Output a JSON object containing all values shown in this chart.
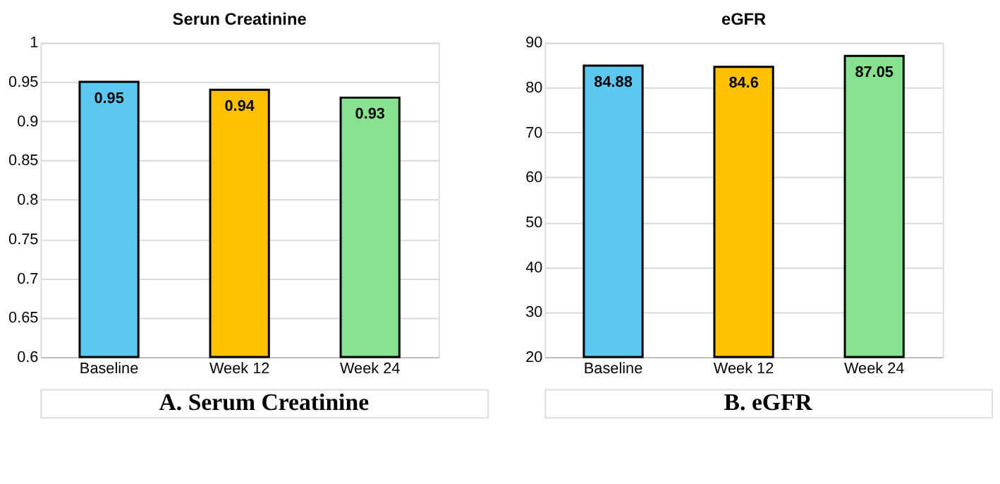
{
  "chart_data": [
    {
      "type": "bar",
      "title": "Serun Creatinine",
      "categories": [
        "Baseline",
        "Week 12",
        "Week 24"
      ],
      "values": [
        0.95,
        0.94,
        0.93
      ],
      "colors": [
        "#5bc8f2",
        "#ffc000",
        "#86e28f"
      ],
      "ylim": [
        0.6,
        1
      ],
      "yticks": [
        0.6,
        0.65,
        0.7,
        0.75,
        0.8,
        0.85,
        0.9,
        0.95,
        1
      ],
      "grid": "y",
      "data_labels": true,
      "annotations": [
        "A.   Serum Creatinine"
      ]
    },
    {
      "type": "bar",
      "title": "eGFR",
      "categories": [
        "Baseline",
        "Week 12",
        "Week 24"
      ],
      "values": [
        84.88,
        84.6,
        87.05
      ],
      "colors": [
        "#5bc8f2",
        "#ffc000",
        "#86e28f"
      ],
      "ylim": [
        20,
        90
      ],
      "yticks": [
        20,
        30,
        40,
        50,
        60,
        70,
        80,
        90
      ],
      "grid": "y",
      "data_labels": true,
      "annotations": [
        "B.   eGFR"
      ]
    }
  ]
}
